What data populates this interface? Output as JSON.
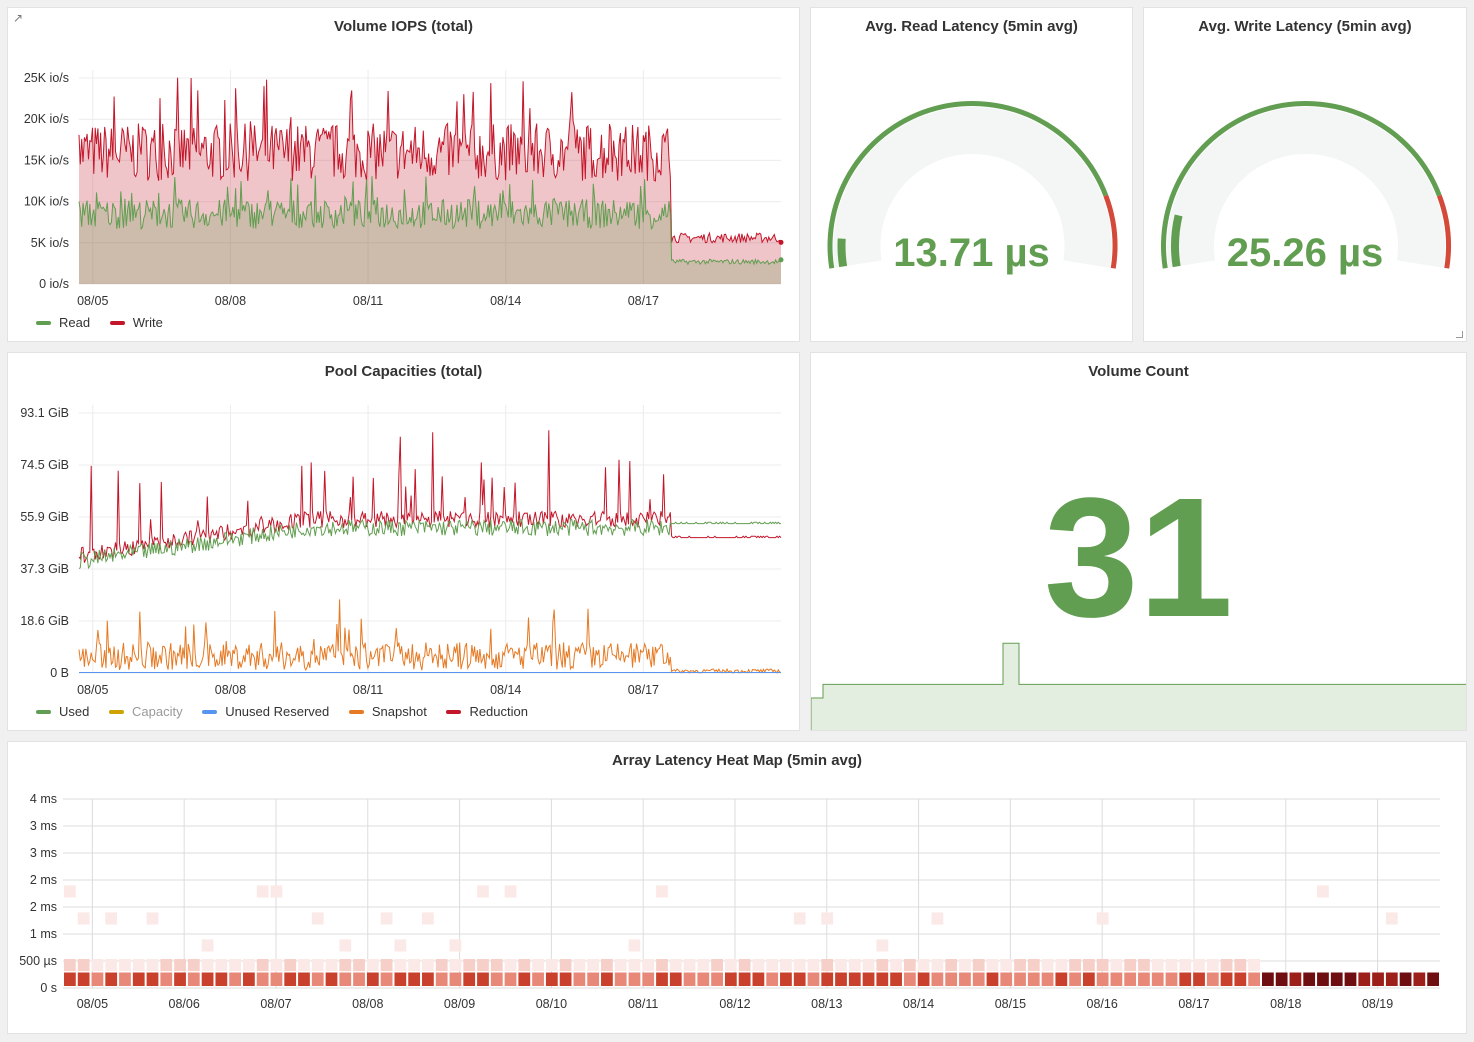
{
  "panels": {
    "iops": {
      "title": "Volume IOPS (total)"
    },
    "read_latency": {
      "title": "Avg. Read Latency (5min avg)",
      "value": "13.71 µs"
    },
    "write_latency": {
      "title": "Avg. Write Latency (5min avg)",
      "value": "25.26 µs"
    },
    "pool": {
      "title": "Pool Capacities (total)"
    },
    "volume_count": {
      "title": "Volume Count",
      "value": "31"
    },
    "heatmap": {
      "title": "Array Latency Heat Map (5min avg)"
    }
  },
  "icons": {
    "panel_link": "external-link-icon",
    "resize": "resize-handle-icon"
  },
  "colors": {
    "green": "#629e51",
    "red": "#c4162a",
    "orange": "#e67a24",
    "yellow": "#cca300",
    "blue": "#5794f2",
    "gauge_bg": "#f4f5f5",
    "gauge_red": "#d44a3a"
  },
  "chart_data": [
    {
      "id": "iops",
      "type": "area",
      "title": "Volume IOPS (total)",
      "x_ticks": [
        "08/05",
        "08/08",
        "08/11",
        "08/14",
        "08/17"
      ],
      "y_ticks": [
        "0 io/s",
        "5K io/s",
        "10K io/s",
        "15K io/s",
        "20K io/s",
        "25K io/s"
      ],
      "ylim": [
        0,
        25000
      ],
      "grid": true,
      "legend": "bottom-left",
      "series": [
        {
          "name": "Read",
          "color": "#629e51",
          "segments": [
            {
              "days": [
                0,
                12.9
              ],
              "mean": 8500,
              "noise": 1800
            },
            {
              "days": [
                12.9,
                15.3
              ],
              "mean": 2700,
              "noise": 300
            }
          ]
        },
        {
          "name": "Write",
          "color": "#c4162a",
          "segments": [
            {
              "days": [
                0,
                12.9
              ],
              "mean": 16000,
              "noise": 3500
            },
            {
              "days": [
                12.9,
                15.3
              ],
              "mean": 5600,
              "noise": 600
            }
          ]
        }
      ]
    },
    {
      "id": "pool",
      "type": "line",
      "title": "Pool Capacities (total)",
      "x_ticks": [
        "08/05",
        "08/08",
        "08/11",
        "08/14",
        "08/17"
      ],
      "y_ticks": [
        "0 B",
        "18.6 GiB",
        "37.3 GiB",
        "55.9 GiB",
        "74.5 GiB",
        "93.1 GiB"
      ],
      "ylim": [
        0,
        93.1
      ],
      "grid": true,
      "legend": "bottom-left",
      "series": [
        {
          "name": "Used",
          "color": "#629e51",
          "start": 40,
          "end_main": 52,
          "tail": 53.5
        },
        {
          "name": "Capacity",
          "color": "#cca300",
          "hidden": true
        },
        {
          "name": "Unused Reserved",
          "color": "#5794f2",
          "flat": 0
        },
        {
          "name": "Snapshot",
          "color": "#e67a24",
          "mean": 6,
          "noise": 5,
          "tail": 0.8
        },
        {
          "name": "Reduction",
          "color": "#c4162a",
          "start": 42,
          "end_main": 55,
          "tail": 48.5
        }
      ]
    },
    {
      "id": "volume_count",
      "type": "area",
      "title": "Volume Count",
      "value": 31,
      "sparkline": [
        29,
        30,
        30,
        30,
        30,
        30,
        35,
        30,
        30,
        30,
        30,
        30,
        30,
        30
      ]
    },
    {
      "id": "heatmap",
      "type": "heatmap",
      "title": "Array Latency Heat Map (5min avg)",
      "x_ticks": [
        "08/05",
        "08/06",
        "08/07",
        "08/08",
        "08/09",
        "08/10",
        "08/11",
        "08/12",
        "08/13",
        "08/14",
        "08/15",
        "08/16",
        "08/17",
        "08/18",
        "08/19"
      ],
      "y_ticks": [
        "0 s",
        "500 µs",
        "1 ms",
        "2 ms",
        "2 ms",
        "3 ms",
        "3 ms",
        "4 ms"
      ],
      "legend": "none",
      "bins": 100
    },
    {
      "id": "read_gauge",
      "type": "gauge",
      "value": 13.71,
      "unit": "µs",
      "threshold_red": 85
    },
    {
      "id": "write_gauge",
      "type": "gauge",
      "value": 25.26,
      "unit": "µs",
      "threshold_red": 85
    }
  ]
}
